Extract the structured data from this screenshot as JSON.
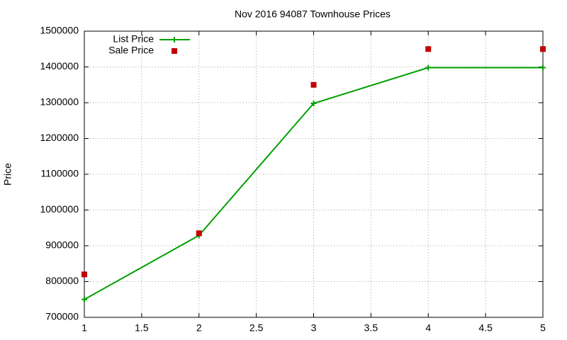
{
  "chart_data": {
    "type": "line",
    "title": "Nov 2016 94087 Townhouse Prices",
    "y_label": "Price",
    "x": [
      1,
      2,
      3,
      4,
      5
    ],
    "series": [
      {
        "name": "List Price",
        "color": "#00a000",
        "line": true,
        "marker": "plus",
        "values": [
          750000,
          929000,
          1298000,
          1398000,
          1398000
        ]
      },
      {
        "name": "Sale Price",
        "color": "#c00000",
        "line": false,
        "marker": "square",
        "values": [
          820000,
          935000,
          1350000,
          1450000,
          1450000
        ]
      }
    ],
    "xlim": [
      1,
      5
    ],
    "xticks": [
      1,
      1.5,
      2,
      2.5,
      3,
      3.5,
      4,
      4.5,
      5
    ],
    "ylim": [
      700000,
      1500000
    ],
    "yticks": [
      700000,
      800000,
      900000,
      1000000,
      1100000,
      1200000,
      1300000,
      1400000,
      1500000
    ],
    "grid": true,
    "legend": "top-left"
  }
}
